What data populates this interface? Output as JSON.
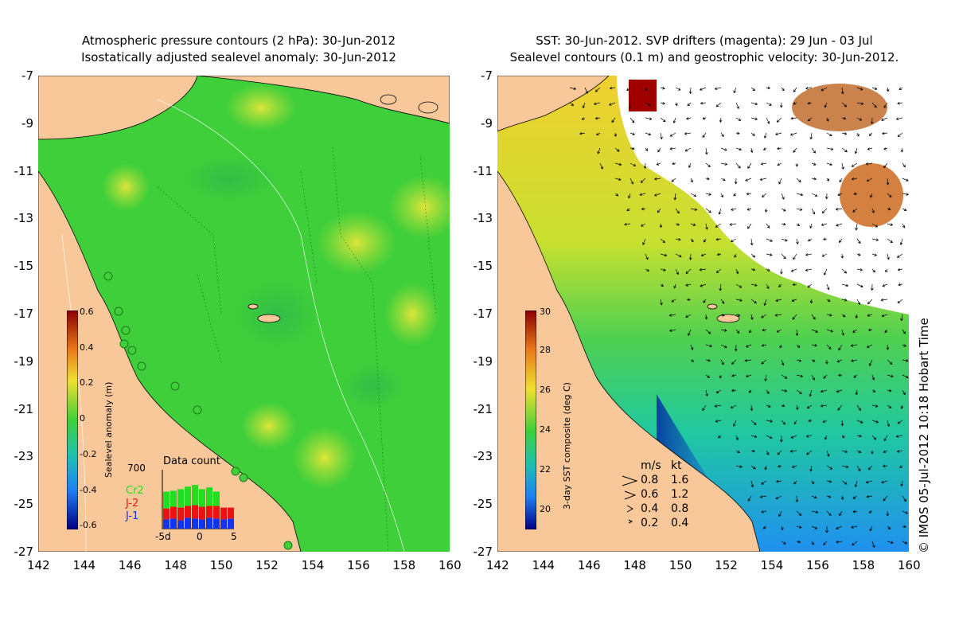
{
  "left_panel": {
    "title_line1": "Atmospheric pressure contours (2 hPa): 30-Jun-2012",
    "title_line2": "Isostatically adjusted sealevel anomaly: 30-Jun-2012",
    "colorbar": {
      "label": "Sealevel anomaly (m)",
      "ticks": [
        "0.6",
        "0.4",
        "0.2",
        "0",
        "-0.2",
        "-0.4",
        "-0.6"
      ],
      "range": [
        -0.6,
        0.6
      ]
    },
    "data_count": {
      "title": "Data count",
      "max_label": "700",
      "series_labels": [
        "Cr2",
        "J-2",
        "J-1"
      ],
      "series_colors": [
        "#22dd22",
        "#ee1111",
        "#1133ee"
      ],
      "x_ticks": [
        "-5d",
        "0",
        "5"
      ],
      "bars": [
        {
          "j1": 110,
          "j2": 130,
          "cr2": 200
        },
        {
          "j1": 120,
          "j2": 140,
          "cr2": 190
        },
        {
          "j1": 100,
          "j2": 150,
          "cr2": 220
        },
        {
          "j1": 130,
          "j2": 140,
          "cr2": 230
        },
        {
          "j1": 120,
          "j2": 160,
          "cr2": 240
        },
        {
          "j1": 110,
          "j2": 150,
          "cr2": 210
        },
        {
          "j1": 130,
          "j2": 140,
          "cr2": 220
        },
        {
          "j1": 120,
          "j2": 150,
          "cr2": 170
        },
        {
          "j1": 110,
          "j2": 140,
          "cr2": 0
        },
        {
          "j1": 120,
          "j2": 130,
          "cr2": 0
        }
      ]
    }
  },
  "right_panel": {
    "title_line1": "SST: 30-Jun-2012. SVP drifters (magenta): 29 Jun - 03 Jul",
    "title_line2": "Sealevel contours (0.1 m) and geostrophic velocity: 30-Jun-2012.",
    "colorbar": {
      "label": "3-day SST composite (deg C)",
      "ticks": [
        "30",
        "28",
        "26",
        "24",
        "22",
        "20"
      ],
      "range": [
        19,
        30
      ]
    },
    "velocity_legend": {
      "header_ms": "m/s",
      "header_kt": "kt",
      "rows": [
        {
          "ms": "0.8",
          "kt": "1.6"
        },
        {
          "ms": "0.6",
          "kt": "1.2"
        },
        {
          "ms": "0.4",
          "kt": "0.8"
        },
        {
          "ms": "0.2",
          "kt": "0.4"
        }
      ]
    }
  },
  "axes": {
    "y_ticks": [
      "-7",
      "-9",
      "-11",
      "-13",
      "-15",
      "-17",
      "-19",
      "-21",
      "-23",
      "-25",
      "-27"
    ],
    "x_ticks": [
      "142",
      "144",
      "146",
      "148",
      "150",
      "152",
      "154",
      "156",
      "158",
      "160"
    ],
    "lon_range": [
      142,
      160
    ],
    "lat_range": [
      -27,
      -7
    ]
  },
  "credit": "© IMOS 05-Jul-2012 10:18 Hobart Time",
  "colors": {
    "land": "#f9c89a",
    "ocean_green": "#3fcf3a",
    "ocean_yellow": "#d8e83a"
  }
}
